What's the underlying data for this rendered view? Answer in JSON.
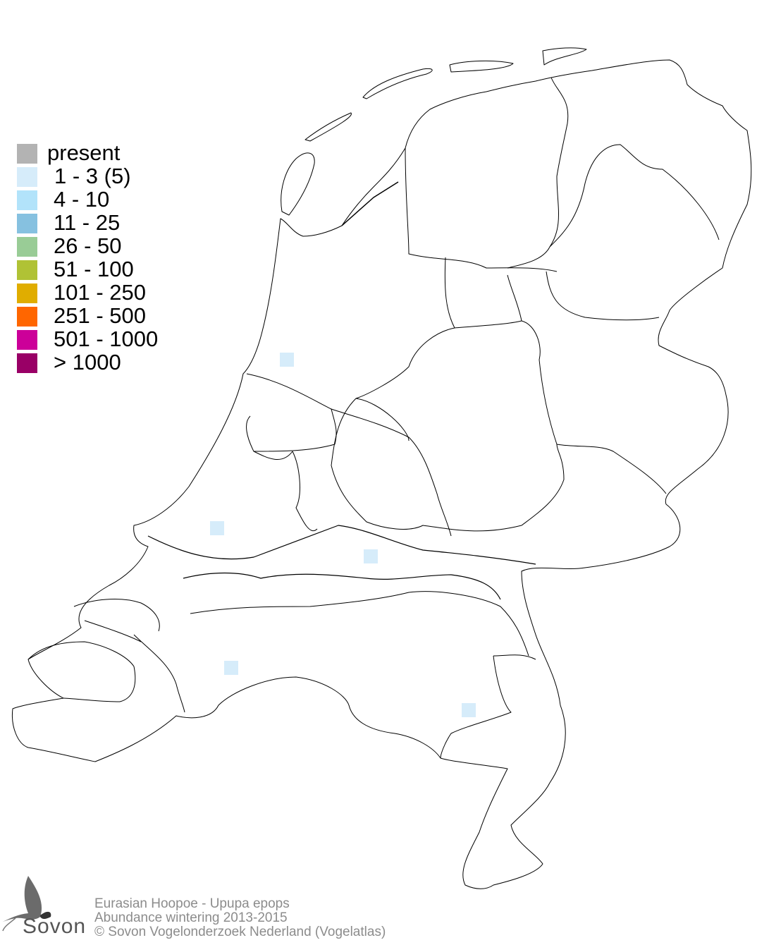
{
  "legend": {
    "items": [
      {
        "label": "present",
        "color": "#b3b3b3"
      },
      {
        "label": "1 - 3 (5)",
        "color": "#d6ecfa"
      },
      {
        "label": "4 - 10",
        "color": "#b2e3fa"
      },
      {
        "label": "11 - 25",
        "color": "#86c1e0"
      },
      {
        "label": "26 - 50",
        "color": "#99cc96"
      },
      {
        "label": "51 - 100",
        "color": "#b0c235"
      },
      {
        "label": "101 - 250",
        "color": "#e0ad00"
      },
      {
        "label": "251 - 500",
        "color": "#ff6600"
      },
      {
        "label": "501 - 1000",
        "color": "#cc0099"
      },
      {
        "label": "> 1000",
        "color": "#990066"
      }
    ]
  },
  "map": {
    "observed_category": "1 - 3 (5)",
    "outline_color": "#000000"
  },
  "credits": {
    "species": "Eurasian Hoopoe - Upupa epops",
    "subtitle": "Abundance wintering 2013-2015",
    "copyright": "© Sovon Vogelonderzoek Nederland (Vogelatlas)"
  },
  "logo": {
    "text": "Sovon"
  }
}
